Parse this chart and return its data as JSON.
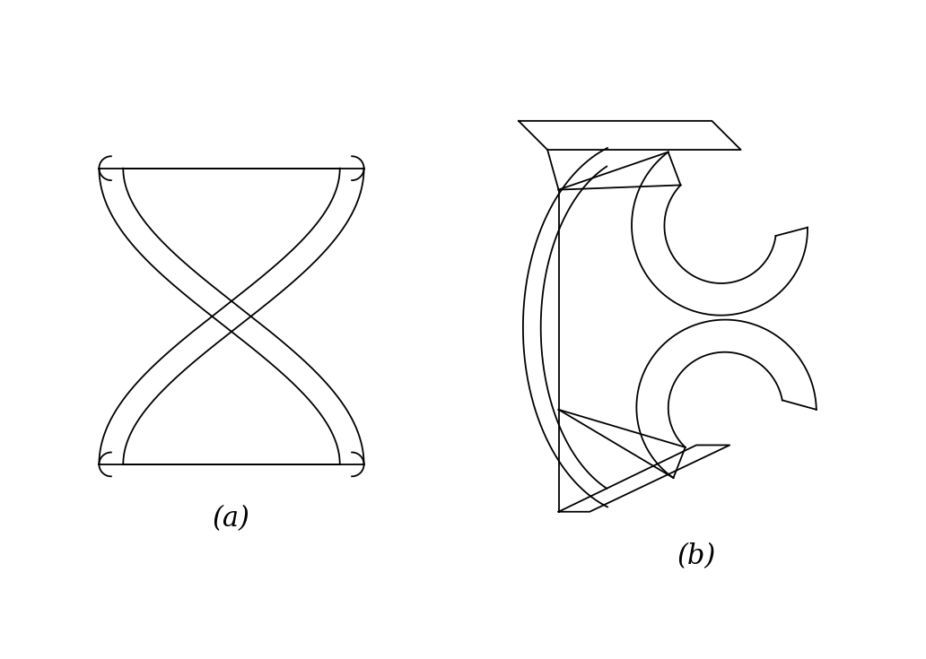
{
  "background": "#ffffff",
  "line_color": "#000000",
  "line_width": 1.3,
  "fig_width": 10.32,
  "fig_height": 7.35,
  "label_a": "(a)",
  "label_b": "(b)",
  "label_fontsize": 22
}
